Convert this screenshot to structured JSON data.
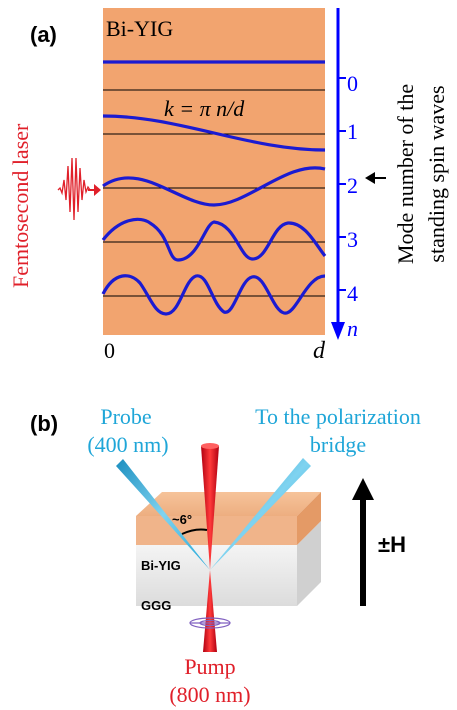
{
  "panel_a": {
    "label": "(a)",
    "material": "Bi-YIG",
    "formula": "k = π n/d",
    "laser_label": "Femtosecond laser",
    "mode_numbers": [
      "0",
      "1",
      "2",
      "3",
      "4"
    ],
    "axis_symbol": "n",
    "x_start": "0",
    "x_end": "d",
    "right_label_line1": "Mode number of the",
    "right_label_line2": "standing spin waves"
  },
  "panel_b": {
    "label": "(b)",
    "probe_line1": "Probe",
    "probe_line2": "(400 nm)",
    "bridge_line1": "To the polarization",
    "bridge_line2": "bridge",
    "angle": "~6°",
    "film": "Bi-YIG",
    "substrate": "GGG",
    "pump_line1": "Pump",
    "pump_line2": "(800 nm)",
    "field": "±H"
  },
  "colors": {
    "film": "#F2A46F",
    "wave": "#1B1BD1",
    "axis": "#0000FF",
    "laser": "#E0202A",
    "probe": "#1FA6D8"
  }
}
